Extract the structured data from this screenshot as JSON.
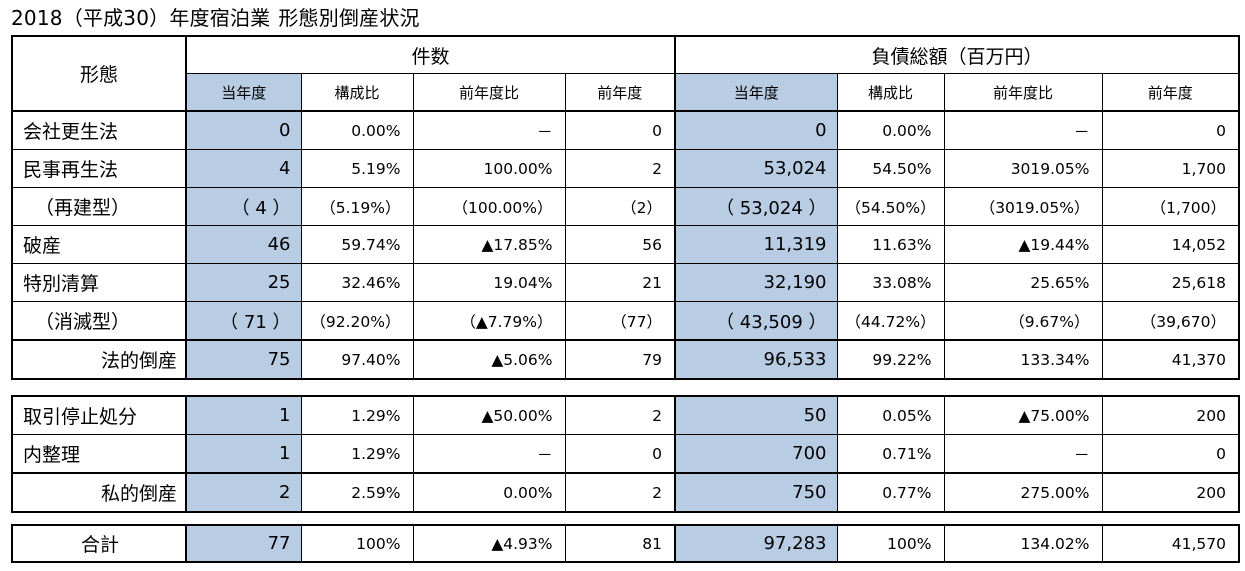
{
  "title": {
    "part1": "2018（平成30）年度宿泊業",
    "part2": "形態別倒産状況"
  },
  "header": {
    "type_label": "形態",
    "count_group": "件数",
    "debt_group": "負債総額（百万円）",
    "sub": [
      "当年度",
      "構成比",
      "前年度比",
      "前年度",
      "当年度",
      "構成比",
      "前年度比",
      "前年度"
    ]
  },
  "legal_rows": [
    {
      "label": "会社更生法",
      "cells": [
        "0",
        "0.00%",
        "－",
        "0",
        "0",
        "0.00%",
        "－",
        "0"
      ]
    },
    {
      "label": "民事再生法",
      "cells": [
        "4",
        "5.19%",
        "100.00%",
        "2",
        "53,024",
        "54.50%",
        "3019.05%",
        "1,700"
      ]
    },
    {
      "label": "（再建型）",
      "cells": [
        "（ 4 ）",
        "（5.19%）",
        "（100.00%）",
        "（2）",
        "（ 53,024 ）",
        "（54.50%）",
        "（3019.05%）",
        "（1,700）"
      ]
    },
    {
      "label": "破産",
      "cells": [
        "46",
        "59.74%",
        "▲17.85%",
        "56",
        "11,319",
        "11.63%",
        "▲19.44%",
        "14,052"
      ]
    },
    {
      "label": "特別清算",
      "cells": [
        "25",
        "32.46%",
        "19.04%",
        "21",
        "32,190",
        "33.08%",
        "25.65%",
        "25,618"
      ]
    },
    {
      "label": "（消滅型）",
      "cells": [
        "（ 71 ）",
        "（92.20%）",
        "（▲7.79%）",
        "（77）",
        "（ 43,509 ）",
        "（44.72%）",
        "（9.67%）",
        "（39,670）"
      ]
    },
    {
      "label": "法的倒産",
      "cells": [
        "75",
        "97.40%",
        "▲5.06%",
        "79",
        "96,533",
        "99.22%",
        "133.34%",
        "41,370"
      ]
    }
  ],
  "private_rows": [
    {
      "label": "取引停止処分",
      "cells": [
        "1",
        "1.29%",
        "▲50.00%",
        "2",
        "50",
        "0.05%",
        "▲75.00%",
        "200"
      ]
    },
    {
      "label": "内整理",
      "cells": [
        "1",
        "1.29%",
        "－",
        "0",
        "700",
        "0.71%",
        "－",
        "0"
      ]
    },
    {
      "label": "私的倒産",
      "cells": [
        "2",
        "2.59%",
        "0.00%",
        "2",
        "750",
        "0.77%",
        "275.00%",
        "200"
      ]
    }
  ],
  "total_row": {
    "label": "合計",
    "cells": [
      "77",
      "100%",
      "▲4.93%",
      "81",
      "97,283",
      "100%",
      "134.02%",
      "41,570"
    ]
  },
  "colors": {
    "highlight": "#b8cce4",
    "border": "#000000"
  }
}
